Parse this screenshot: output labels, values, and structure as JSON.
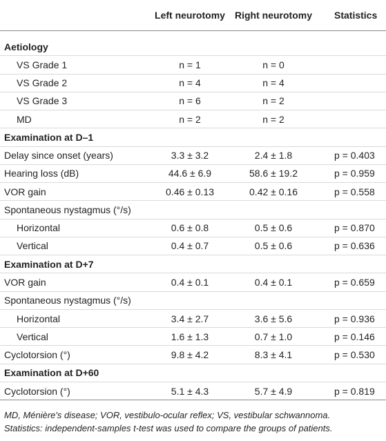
{
  "table": {
    "header": [
      "Left neurotomy",
      "Right neurotomy",
      "Statistics"
    ],
    "sections": [
      {
        "title": "Aetiology",
        "rows": [
          {
            "label": "VS Grade 1",
            "indent": true,
            "cells": [
              "n = 1",
              "n = 0"
            ]
          },
          {
            "label": "VS Grade 2",
            "indent": true,
            "cells": [
              "n = 4",
              "n = 4"
            ]
          },
          {
            "label": "VS Grade 3",
            "indent": true,
            "cells": [
              "n = 6",
              "n = 2"
            ]
          },
          {
            "label": "MD",
            "indent": true,
            "cells": [
              "n = 2",
              "n = 2"
            ]
          }
        ]
      },
      {
        "title": "Examination at D–1",
        "rows": [
          {
            "label": "Delay since onset (years)",
            "cells": [
              "3.3 ± 3.2",
              "2.4 ± 1.8",
              "p = 0.403"
            ]
          },
          {
            "label": "Hearing loss (dB)",
            "cells": [
              "44.6 ± 6.9",
              "58.6 ± 19.2",
              "p = 0.959"
            ]
          },
          {
            "label": "VOR gain",
            "cells": [
              "0.46 ± 0.13",
              "0.42 ± 0.16",
              "p = 0.558"
            ]
          },
          {
            "label": "Spontaneous nystagmus (°/s)"
          },
          {
            "label": "Horizontal",
            "indent": true,
            "cells": [
              "0.6 ± 0.8",
              "0.5 ± 0.6",
              "p = 0.870"
            ]
          },
          {
            "label": "Vertical",
            "indent": true,
            "cells": [
              "0.4 ± 0.7",
              "0.5 ± 0.6",
              "p = 0.636"
            ]
          }
        ]
      },
      {
        "title": "Examination at D+7",
        "rows": [
          {
            "label": "VOR gain",
            "cells": [
              "0.4 ± 0.1",
              "0.4 ± 0.1",
              "p = 0.659"
            ]
          },
          {
            "label": "Spontaneous nystagmus (°/s)"
          },
          {
            "label": "Horizontal",
            "indent": true,
            "cells": [
              "3.4 ± 2.7",
              "3.6 ± 5.6",
              "p = 0.936"
            ]
          },
          {
            "label": "Vertical",
            "indent": true,
            "cells": [
              "1.6 ± 1.3",
              "0.7 ± 1.0",
              "p = 0.146"
            ]
          },
          {
            "label": "Cyclotorsion (°)",
            "cells": [
              "9.8 ± 4.2",
              "8.3 ± 4.1",
              "p = 0.530"
            ]
          }
        ]
      },
      {
        "title": "Examination at D+60",
        "rows": [
          {
            "label": "Cyclotorsion (°)",
            "cells": [
              "5.1 ± 4.3",
              "5.7 ± 4.9",
              "p = 0.819"
            ]
          }
        ]
      }
    ]
  },
  "footnote": [
    "MD, Ménière's disease; VOR, vestibulo-ocular reflex; VS, vestibular schwannoma.",
    "Statistics: independent-samples t-test was used to compare the groups of patients."
  ]
}
